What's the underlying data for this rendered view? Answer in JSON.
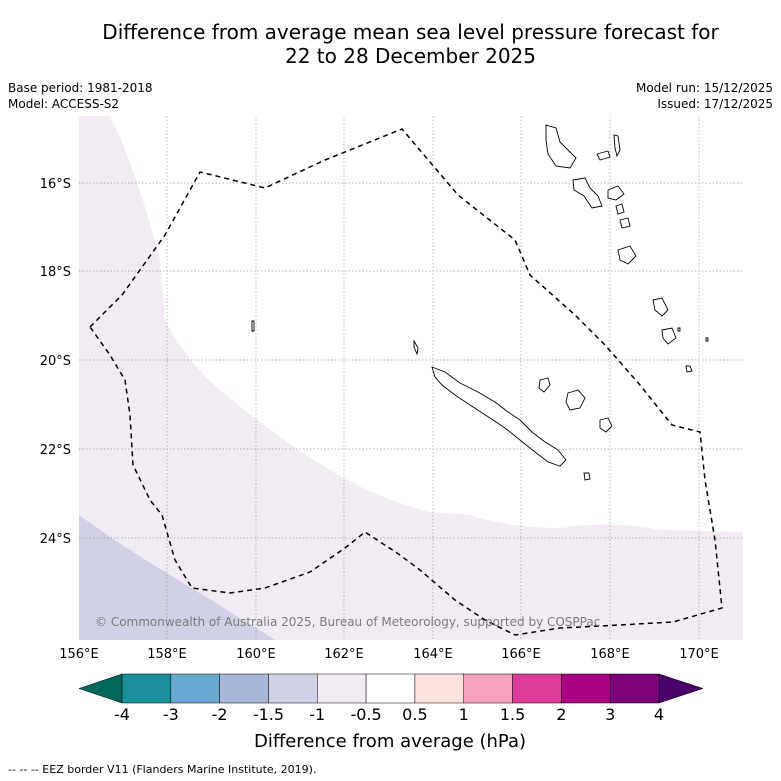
{
  "title": {
    "line1": "Difference from average mean sea level pressure forecast for",
    "line2": "22 to 28 December 2025"
  },
  "meta_left": {
    "base_period": "Base period: 1981-2018",
    "model": "Model: ACCESS-S2"
  },
  "meta_right": {
    "model_run": "Model run: 15/12/2025",
    "issued": "Issued: 17/12/2025"
  },
  "map": {
    "lat_labels": [
      "16°S",
      "18°S",
      "20°S",
      "22°S",
      "24°S"
    ],
    "lon_labels": [
      "156°E",
      "158°E",
      "160°E",
      "162°E",
      "164°E",
      "166°E",
      "168°E",
      "170°E"
    ],
    "copyright": "© Commonwealth of Australia 2025, Bureau of Meteorology, supported by COSPPac"
  },
  "colorbar": {
    "ticks": [
      "-4",
      "-3",
      "-2",
      "-1.5",
      "-1",
      "-0.5",
      "0.5",
      "1",
      "1.5",
      "2",
      "3",
      "4"
    ],
    "colors": [
      "#1a8f99",
      "#6aaad0",
      "#a7b8d8",
      "#d0d0e6",
      "#f3ebf4",
      "#ffffff",
      "#fde0e0",
      "#f7a1be",
      "#dd3b9a",
      "#ab0282",
      "#7a0177"
    ],
    "min_arrow_color": "#00695c",
    "max_arrow_color": "#49006a",
    "label": "Difference from average (hPa)"
  },
  "footer": {
    "legend": "--  --  -- EEZ border V11 (Flanders Marine Institute, 2019)."
  }
}
